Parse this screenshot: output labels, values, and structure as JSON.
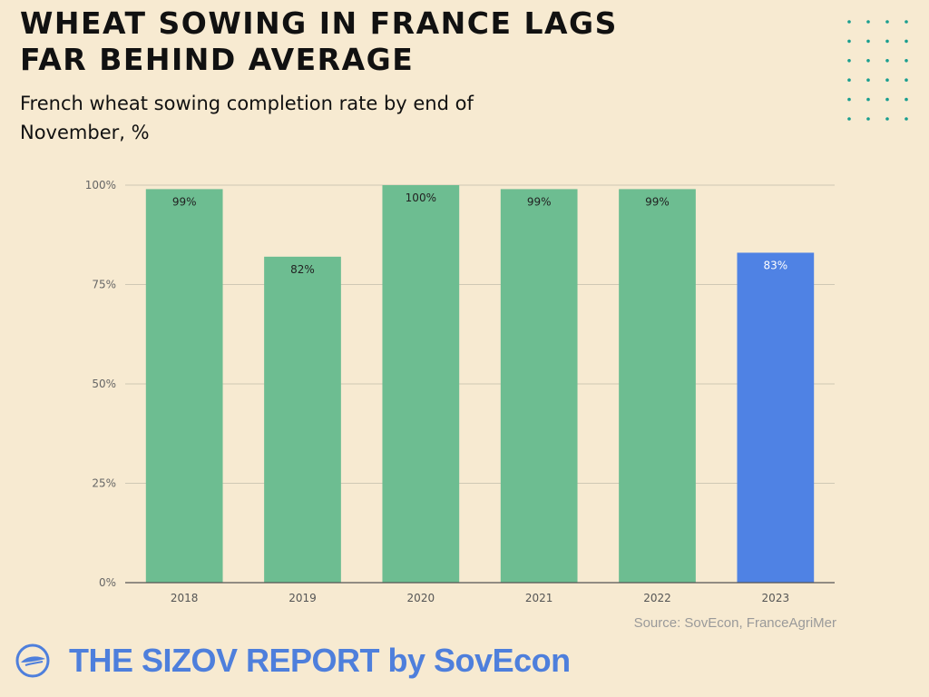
{
  "header": {
    "title_line1": "WHEAT SOWING IN FRANCE LAGS",
    "title_line2": "FAR BEHIND AVERAGE",
    "subtitle_line1": "French wheat sowing completion rate by end of",
    "subtitle_line2": "November, %"
  },
  "chart_data": {
    "type": "bar",
    "title": "WHEAT SOWING IN FRANCE LAGS FAR BEHIND AVERAGE",
    "subtitle": "French wheat sowing completion rate by end of November, %",
    "categories": [
      "2018",
      "2019",
      "2020",
      "2021",
      "2022",
      "2023"
    ],
    "values": [
      99,
      82,
      100,
      99,
      99,
      83
    ],
    "data_labels": [
      "99%",
      "82%",
      "100%",
      "99%",
      "99%",
      "83%"
    ],
    "bar_colors": [
      "#6dbd91",
      "#6dbd91",
      "#6dbd91",
      "#6dbd91",
      "#6dbd91",
      "#4f82e4"
    ],
    "label_colors": [
      "#222222",
      "#222222",
      "#222222",
      "#222222",
      "#222222",
      "#ffffff"
    ],
    "yticks": [
      0,
      25,
      50,
      75,
      100
    ],
    "ytick_labels": [
      "0%",
      "25%",
      "50%",
      "75%",
      "100%"
    ],
    "ylim": [
      0,
      100
    ],
    "xlabel": "",
    "ylabel": "",
    "grid": true,
    "legend": "none"
  },
  "footer": {
    "source": "Source: SovEcon, FranceAgriMer",
    "brand": "THE SIZOV REPORT by SovEcon"
  },
  "colors": {
    "background": "#f7ead1",
    "brand_blue": "#4e7fdc",
    "dot_teal": "#1a9e8f",
    "grid": "#cfc8b4",
    "axis": "#555555"
  },
  "icons": {
    "brand_logo": "sovecon-logo-icon",
    "decoration": "dot-grid-icon"
  }
}
